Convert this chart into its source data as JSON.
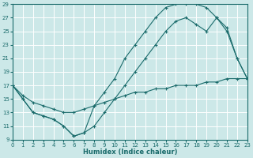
{
  "xlabel": "Humidex (Indice chaleur)",
  "bg_color": "#cce8e8",
  "grid_color": "#b8d8d8",
  "line_color": "#1a6b6b",
  "xlim": [
    0,
    23
  ],
  "ylim": [
    9,
    29
  ],
  "xticks": [
    0,
    1,
    2,
    3,
    4,
    5,
    6,
    7,
    8,
    9,
    10,
    11,
    12,
    13,
    14,
    15,
    16,
    17,
    18,
    19,
    20,
    21,
    22,
    23
  ],
  "yticks": [
    9,
    11,
    13,
    15,
    17,
    19,
    21,
    23,
    25,
    27,
    29
  ],
  "line_upper_x": [
    0,
    1,
    2,
    3,
    4,
    5,
    6,
    7,
    8,
    9,
    10,
    11,
    12,
    13,
    14,
    15,
    16,
    17,
    18,
    19,
    20,
    21,
    22,
    23
  ],
  "line_upper_y": [
    17,
    15,
    13,
    12.5,
    12,
    11,
    9.5,
    10,
    14,
    16,
    18,
    21,
    23,
    25,
    27,
    28.5,
    29,
    29,
    29,
    28.5,
    27,
    25.5,
    21,
    18
  ],
  "line_mid_x": [
    0,
    1,
    2,
    3,
    4,
    5,
    6,
    7,
    8,
    9,
    10,
    11,
    12,
    13,
    14,
    15,
    16,
    17,
    18,
    19,
    20,
    21,
    22,
    23
  ],
  "line_mid_y": [
    17,
    15,
    13,
    12.5,
    12,
    11,
    9.5,
    10,
    11,
    13,
    15,
    17,
    19,
    21,
    23,
    25,
    26.5,
    27,
    26,
    25,
    27,
    25,
    21,
    18
  ],
  "line_flat_x": [
    0,
    1,
    2,
    3,
    4,
    5,
    6,
    7,
    8,
    9,
    10,
    11,
    12,
    13,
    14,
    15,
    16,
    17,
    18,
    19,
    20,
    21,
    22,
    23
  ],
  "line_flat_y": [
    17,
    15.5,
    14.5,
    14,
    13.5,
    13,
    13,
    13.5,
    14,
    14.5,
    15,
    15.5,
    16,
    16,
    16.5,
    16.5,
    17,
    17,
    17,
    17.5,
    17.5,
    18,
    18,
    18
  ]
}
